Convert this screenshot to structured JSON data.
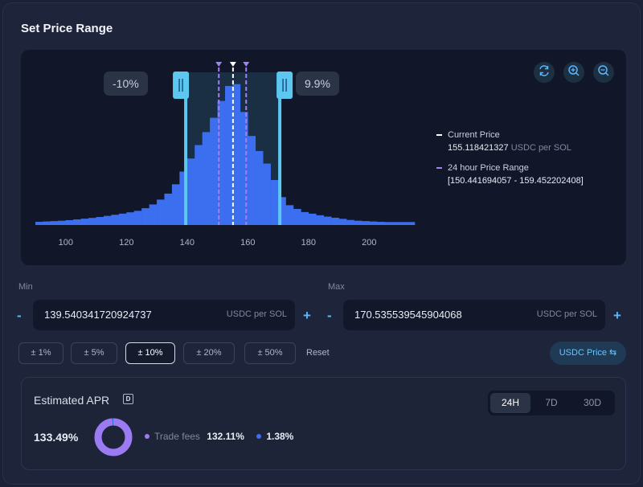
{
  "header": {
    "title": "Set Price Range"
  },
  "chart": {
    "min_pct": "-10%",
    "max_pct": "9.9%",
    "x_ticks": [
      "100",
      "120",
      "140",
      "160",
      "180",
      "200"
    ],
    "controls": {
      "refresh_icon": "refresh-icon",
      "zoom_in_icon": "zoom-in-icon",
      "zoom_out_icon": "zoom-out-icon"
    },
    "legend": {
      "current_label": "Current Price",
      "current_value": "155.118421327",
      "current_unit": "USDC per SOL",
      "range_label": "24 hour Price Range",
      "range_value": "[150.441694057 - 159.452202408]"
    }
  },
  "chart_data": {
    "type": "bar",
    "xlim": [
      90,
      215
    ],
    "x_ticks": [
      100,
      120,
      140,
      160,
      180,
      200
    ],
    "selected_range": [
      139.54034172092474,
      170.53553954590407
    ],
    "current_price": 155.118421327,
    "range_24h": [
      150.441694057,
      159.452202408
    ],
    "liquidity_profile": [
      [
        90,
        0.02
      ],
      [
        100,
        0.03
      ],
      [
        110,
        0.05
      ],
      [
        120,
        0.08
      ],
      [
        125,
        0.1
      ],
      [
        130,
        0.15
      ],
      [
        135,
        0.23
      ],
      [
        140,
        0.4
      ],
      [
        145,
        0.58
      ],
      [
        148,
        0.68
      ],
      [
        150,
        0.78
      ],
      [
        152,
        0.86
      ],
      [
        154,
        0.94
      ],
      [
        155,
        1.0
      ],
      [
        156,
        0.96
      ],
      [
        158,
        0.82
      ],
      [
        160,
        0.65
      ],
      [
        163,
        0.52
      ],
      [
        166,
        0.42
      ],
      [
        168,
        0.35
      ],
      [
        170,
        0.22
      ],
      [
        173,
        0.14
      ],
      [
        178,
        0.09
      ],
      [
        185,
        0.06
      ],
      [
        195,
        0.03
      ],
      [
        205,
        0.02
      ],
      [
        214,
        0.02
      ]
    ],
    "colors": {
      "bars": "#3c6ef0",
      "range_handle": "#5cc8f0",
      "current_price": "#ffffff",
      "range_24h": "#a082f0"
    }
  },
  "inputs": {
    "min_label": "Min",
    "min_value": "139.540341720924737",
    "max_label": "Max",
    "max_value": "170.535539545904068",
    "unit": "USDC per SOL",
    "minus": "-",
    "plus": "+"
  },
  "presets": [
    "± 1%",
    "± 5%",
    "± 10%",
    "± 20%",
    "± 50%"
  ],
  "reset_label": "Reset",
  "usdc_price_label": "USDC Price ⇆",
  "apr": {
    "title": "Estimated APR",
    "badge": "D",
    "tabs": [
      "24H",
      "7D",
      "30D"
    ],
    "value": "133.49%",
    "trade_fees_label": "Trade fees",
    "trade_fees_value": "132.11%",
    "rewards_value": "1.38%",
    "colors": {
      "trade_fees": "#9b7af2",
      "rewards": "#3c6ef0"
    }
  }
}
